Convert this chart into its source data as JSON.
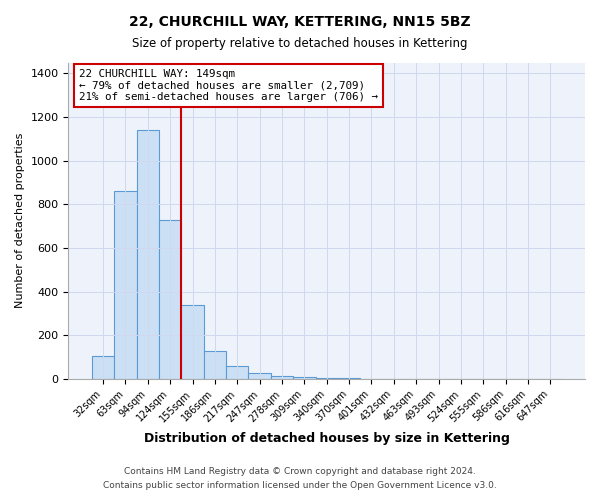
{
  "title": "22, CHURCHILL WAY, KETTERING, NN15 5BZ",
  "subtitle": "Size of property relative to detached houses in Kettering",
  "xlabel": "Distribution of detached houses by size in Kettering",
  "ylabel": "Number of detached properties",
  "bar_color": "#cce0f5",
  "bar_edge_color": "#5b9bd5",
  "vline_color": "#cc0000",
  "annotation_line1": "22 CHURCHILL WAY: 149sqm",
  "annotation_line2": "← 79% of detached houses are smaller (2,709)",
  "annotation_line3": "21% of semi-detached houses are larger (706) →",
  "annotation_box_color": "#ffffff",
  "annotation_box_edge": "#cc0000",
  "ylim": [
    0,
    1450
  ],
  "yticks": [
    0,
    200,
    400,
    600,
    800,
    1000,
    1200,
    1400
  ],
  "grid_color": "#d0d8ef",
  "footnote1": "Contains HM Land Registry data © Crown copyright and database right 2024.",
  "footnote2": "Contains public sector information licensed under the Open Government Licence v3.0.",
  "fig_bg_color": "#ffffff",
  "plot_bg_color": "#eef2fa",
  "all_labels": [
    "32sqm",
    "63sqm",
    "94sqm",
    "124sqm",
    "155sqm",
    "186sqm",
    "217sqm",
    "247sqm",
    "278sqm",
    "309sqm",
    "340sqm",
    "370sqm",
    "401sqm",
    "432sqm",
    "463sqm",
    "493sqm",
    "524sqm",
    "555sqm",
    "586sqm",
    "616sqm",
    "647sqm"
  ],
  "all_values": [
    105,
    860,
    1140,
    730,
    340,
    130,
    60,
    28,
    15,
    10,
    5,
    3,
    0,
    0,
    0,
    0,
    0,
    0,
    0,
    0,
    0
  ],
  "vline_x_index": 3.5
}
